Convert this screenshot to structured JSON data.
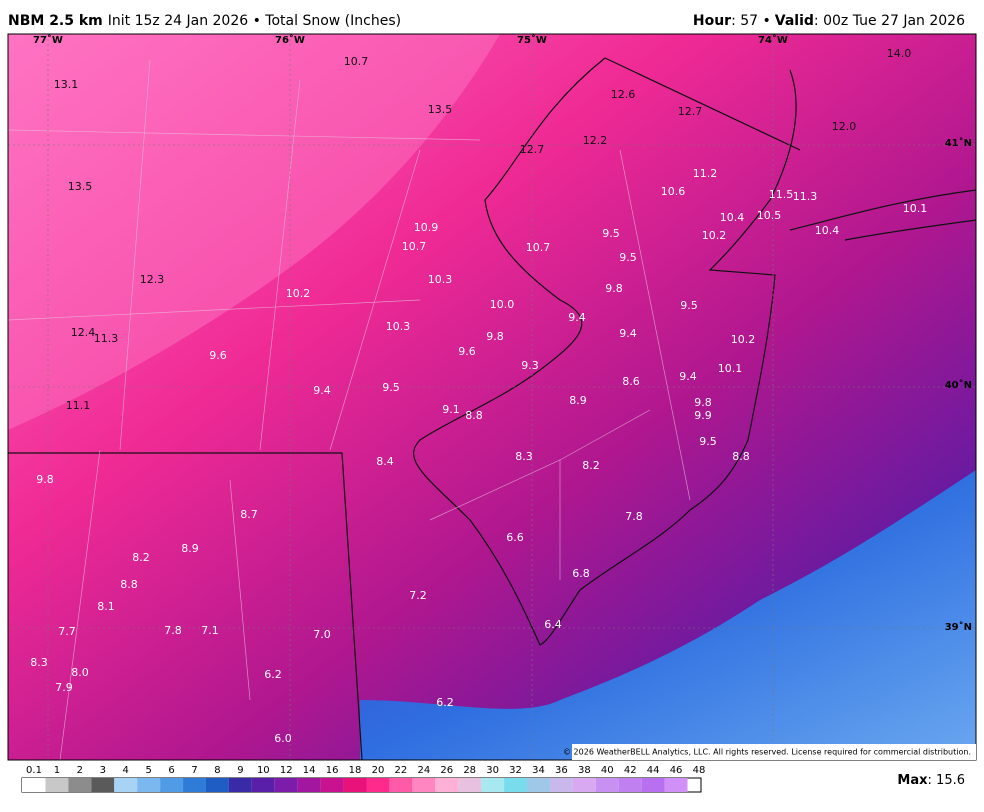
{
  "header": {
    "model": "NBM 2.5 km",
    "subtitle": "Init 15z 24 Jan 2026 • Total Snow (Inches)",
    "hour_label": "Hour",
    "hour_value": ": 57 •",
    "valid_label": "Valid",
    "valid_value": ": 00z Tue 27 Jan 2026"
  },
  "map": {
    "lon_labels": [
      "77˚W",
      "76˚W",
      "75˚W",
      "74˚W"
    ],
    "lat_labels": [
      "41˚N",
      "40˚N",
      "39˚N"
    ],
    "values": [
      "10.7",
      "13.1",
      "13.5",
      "12.6",
      "12.7",
      "14.0",
      "12.0",
      "12.2",
      "12.7",
      "11.2",
      "13.5",
      "10.6",
      "11.5",
      "11.3",
      "10.5",
      "10.4",
      "10.1",
      "10.9",
      "9.5",
      "10.2",
      "10.4",
      "10.7",
      "10.7",
      "9.5",
      "12.3",
      "10.3",
      "9.8",
      "10.2",
      "10.0",
      "9.5",
      "9.4",
      "10.3",
      "12.4",
      "11.3",
      "9.8",
      "9.4",
      "10.2",
      "9.6",
      "9.6",
      "9.3",
      "10.1",
      "9.4",
      "8.6",
      "9.4",
      "9.5",
      "8.9",
      "9.8",
      "11.1",
      "9.1",
      "8.8",
      "9.9",
      "9.5",
      "8.8",
      "8.3",
      "8.4",
      "8.2",
      "9.8",
      "8.7",
      "7.8",
      "6.6",
      "8.9",
      "8.2",
      "6.8",
      "8.8",
      "7.2",
      "8.1",
      "6.4",
      "7.7",
      "7.8",
      "7.1",
      "7.0",
      "8.3",
      "8.0",
      "6.2",
      "7.9",
      "6.2",
      "6.0"
    ],
    "copyright": "© 2026 WeatherBELL Analytics, LLC. All rights reserved. License required for commercial distribution."
  },
  "legend": {
    "labels": [
      "0.1",
      "1",
      "2",
      "3",
      "4",
      "5",
      "6",
      "7",
      "8",
      "9",
      "10",
      "12",
      "14",
      "16",
      "18",
      "20",
      "22",
      "24",
      "26",
      "28",
      "30",
      "32",
      "34",
      "36",
      "38",
      "40",
      "42",
      "44",
      "46",
      "48"
    ],
    "colors": [
      "#ffffff",
      "#c8c8c8",
      "#8c8c8c",
      "#5a5a5a",
      "#a9d3f5",
      "#7ab8ef",
      "#4f9be6",
      "#2f7bd8",
      "#1f5cc4",
      "#3b2aa8",
      "#5a1fa8",
      "#7d1cab",
      "#a3169f",
      "#c9128f",
      "#e8127a",
      "#ff2a8c",
      "#ff5aa8",
      "#ff86c0",
      "#ffb0d6",
      "#e8c0e0",
      "#a8e8f0",
      "#78dcec",
      "#9fc8e8",
      "#c8b8ec",
      "#d8a8f0",
      "#c890f0",
      "#c080f0",
      "#b870f0",
      "#d090f8"
    ],
    "max_label": "Max",
    "max_value": ": 15.6"
  }
}
